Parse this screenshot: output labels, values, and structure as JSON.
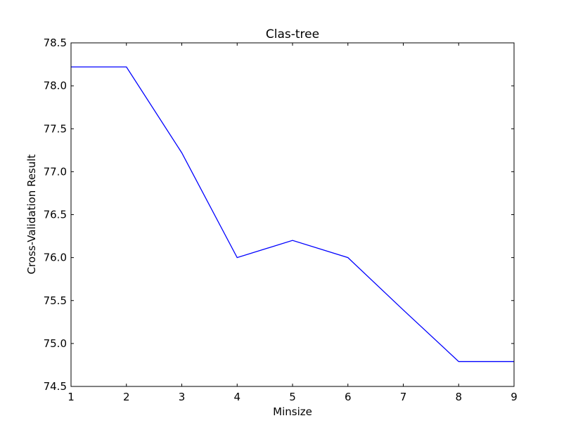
{
  "chart_data": {
    "type": "line",
    "title": "Clas-tree",
    "xlabel": "Minsize",
    "ylabel": "Cross-Validation Result",
    "xlim": [
      1,
      9
    ],
    "ylim": [
      74.5,
      78.5
    ],
    "xticks": [
      1,
      2,
      3,
      4,
      5,
      6,
      7,
      8,
      9
    ],
    "yticks": [
      74.5,
      75.0,
      75.5,
      76.0,
      76.5,
      77.0,
      77.5,
      78.0,
      78.5
    ],
    "ytick_decimals": 1,
    "grid": false,
    "legend": "none",
    "series": [
      {
        "color": "#0000ff",
        "x": [
          1,
          2,
          3,
          4,
          5,
          6,
          7,
          8,
          9
        ],
        "y": [
          78.22,
          78.22,
          77.22,
          76.0,
          76.2,
          76.0,
          75.39,
          74.79,
          74.79
        ]
      }
    ]
  }
}
